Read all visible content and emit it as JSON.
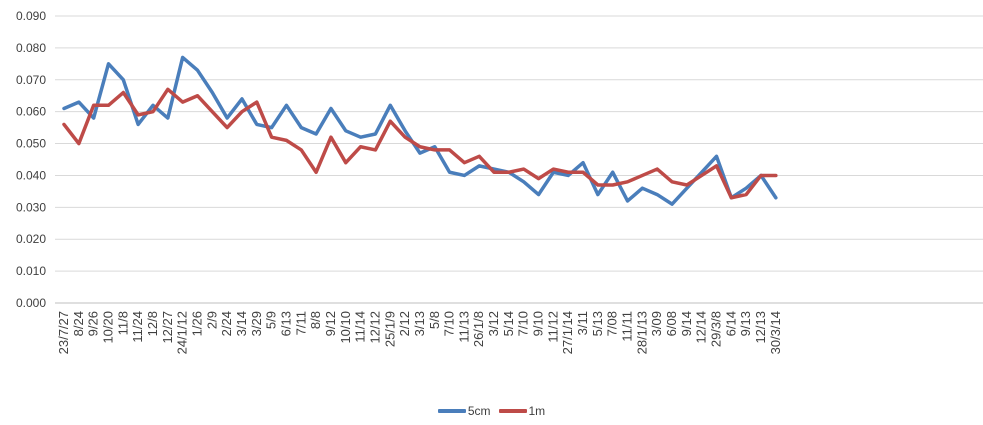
{
  "chart_data": {
    "type": "line",
    "title": "",
    "xlabel": "",
    "ylabel": "",
    "ylim": [
      0,
      0.09
    ],
    "yticks": [
      "0.000",
      "0.010",
      "0.020",
      "0.030",
      "0.040",
      "0.050",
      "0.060",
      "0.070",
      "0.080",
      "0.090"
    ],
    "categories": [
      "23/7/27",
      "8/24",
      "9/26",
      "10/20",
      "11/8",
      "11/24",
      "12/8",
      "12/27",
      "24/1/12",
      "1/26",
      "2/9",
      "2/24",
      "3/14",
      "3/29",
      "5/9",
      "6/13",
      "7/11",
      "8/8",
      "9/12",
      "10/10",
      "11/14",
      "12/12",
      "25/1/9",
      "2/12",
      "3/13",
      "5/8",
      "7/10",
      "11/13",
      "26/1/8",
      "3/12",
      "5/14",
      "7/10",
      "9/10",
      "11/12",
      "27/1/14",
      "3/11",
      "5/13",
      "7/08",
      "11/11",
      "28/1/13",
      "3/09",
      "6/08",
      "9/14",
      "12/14",
      "29/3/8",
      "6/14",
      "9/13",
      "12/13",
      "30/3/14"
    ],
    "grid": true,
    "legend_position": "bottom",
    "series": [
      {
        "name": "5cm",
        "color": "#4a7ebb",
        "values": [
          0.061,
          0.063,
          0.058,
          0.075,
          0.07,
          0.056,
          0.062,
          0.058,
          0.077,
          0.073,
          0.066,
          0.058,
          0.064,
          0.056,
          0.055,
          0.062,
          0.055,
          0.053,
          0.061,
          0.054,
          0.052,
          0.053,
          0.062,
          0.054,
          0.047,
          0.049,
          0.041,
          0.04,
          0.043,
          0.042,
          0.041,
          0.038,
          0.034,
          0.041,
          0.04,
          0.044,
          0.034,
          0.041,
          0.032,
          0.036,
          0.034,
          0.031,
          0.036,
          0.041,
          0.046,
          0.033,
          0.036,
          0.04,
          0.033
        ]
      },
      {
        "name": "1m",
        "color": "#be4b48",
        "values": [
          0.056,
          0.05,
          0.062,
          0.062,
          0.066,
          0.059,
          0.06,
          0.067,
          0.063,
          0.065,
          0.06,
          0.055,
          0.06,
          0.063,
          0.052,
          0.051,
          0.048,
          0.041,
          0.052,
          0.044,
          0.049,
          0.048,
          0.057,
          0.052,
          0.049,
          0.048,
          0.048,
          0.044,
          0.046,
          0.041,
          0.041,
          0.042,
          0.039,
          0.042,
          0.041,
          0.041,
          0.037,
          0.037,
          0.038,
          0.04,
          0.042,
          0.038,
          0.037,
          0.04,
          0.043,
          0.033,
          0.034,
          0.04,
          0.04
        ]
      }
    ]
  }
}
